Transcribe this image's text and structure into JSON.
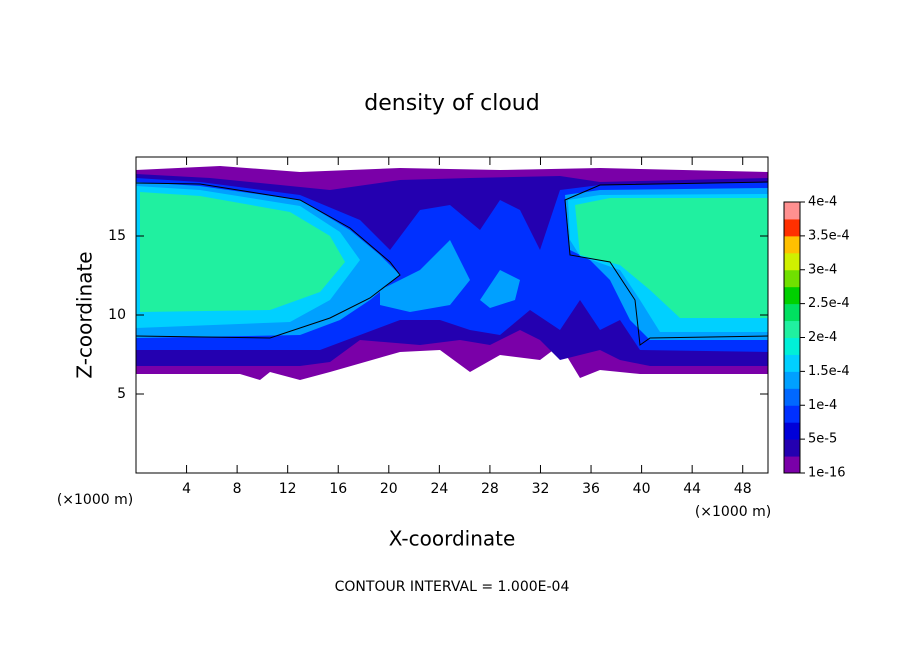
{
  "chart_data": {
    "type": "contour",
    "title": "density of cloud",
    "xlabel": "X-coordinate",
    "ylabel": "Z-coordinate",
    "x_unit_label": "(×1000 m)",
    "y_unit_label": "(×1000 m)",
    "footnote": "CONTOUR INTERVAL = 1.000E-04",
    "xlim": [
      0,
      50
    ],
    "xticks": [
      4,
      8,
      12,
      16,
      20,
      24,
      28,
      32,
      36,
      40,
      44,
      48
    ],
    "ylim": [
      0,
      20
    ],
    "yticks": [
      5,
      10,
      15
    ],
    "colorbar": {
      "levels": [
        {
          "value": 1e-16,
          "label": "1e-16"
        },
        {
          "value": 5e-05,
          "label": "5e-5"
        },
        {
          "value": 0.0001,
          "label": "1e-4"
        },
        {
          "value": 0.00015,
          "label": "1.5e-4"
        },
        {
          "value": 0.0002,
          "label": "2e-4"
        },
        {
          "value": 0.00025,
          "label": "2.5e-4"
        },
        {
          "value": 0.0003,
          "label": "3e-4"
        },
        {
          "value": 0.00035,
          "label": "3.5e-4"
        },
        {
          "value": 0.0004,
          "label": "4e-4"
        }
      ],
      "colors": [
        "#7a00a8",
        "#2400b0",
        "#0000d8",
        "#0030ff",
        "#0068ff",
        "#00a0ff",
        "#00d0ff",
        "#00f0d8",
        "#20f0a0",
        "#00e060",
        "#00d000",
        "#70e000",
        "#d0f000",
        "#ffc000",
        "#ff3000",
        "#ff9090"
      ]
    }
  }
}
